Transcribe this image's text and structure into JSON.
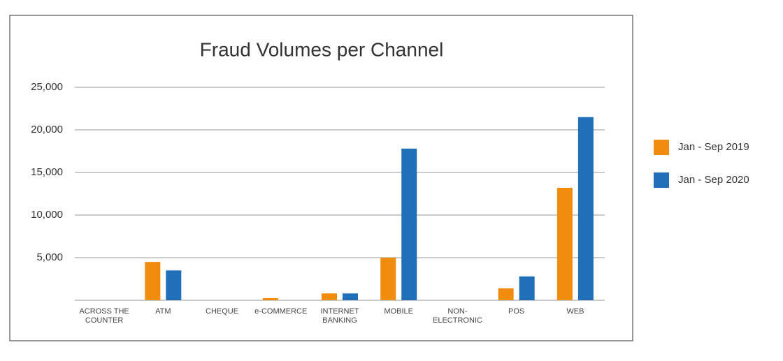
{
  "chart_data": {
    "type": "bar",
    "title": "Fraud Volumes per Channel",
    "categories": [
      "ACROSS THE COUNTER",
      "ATM",
      "CHEQUE",
      "e-COMMERCE",
      "INTERNET BANKING",
      "MOBILE",
      "NON-ELECTRONIC",
      "POS",
      "WEB"
    ],
    "series": [
      {
        "name": "Jan - Sep 2019",
        "color": "#f28c0f",
        "values": [
          0,
          4500,
          0,
          250,
          800,
          5000,
          0,
          1400,
          13200
        ]
      },
      {
        "name": "Jan - Sep 2020",
        "color": "#1f6fb9",
        "values": [
          0,
          3500,
          0,
          0,
          800,
          17800,
          0,
          2800,
          21500
        ]
      }
    ],
    "ylim": [
      0,
      25000
    ],
    "yticks": [
      {
        "value": 5000,
        "label": "5,000"
      },
      {
        "value": 10000,
        "label": "10,000"
      },
      {
        "value": 15000,
        "label": "15,000"
      },
      {
        "value": 20000,
        "label": "20,000"
      },
      {
        "value": 25000,
        "label": "25,000"
      }
    ],
    "grid": true,
    "legend": "right"
  }
}
